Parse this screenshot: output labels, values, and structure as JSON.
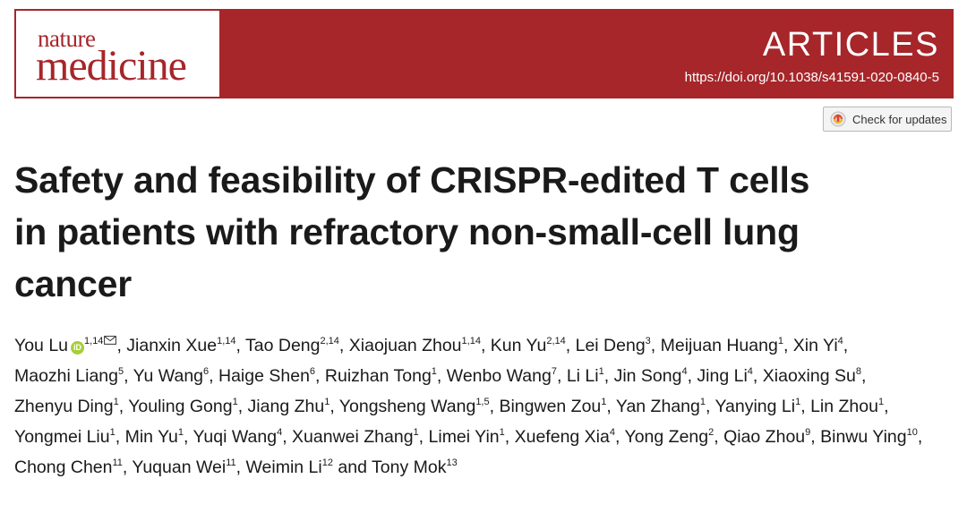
{
  "header": {
    "journal_line1": "nature",
    "journal_line2": "medicine",
    "section": "ARTICLES",
    "doi": "https://doi.org/10.1038/s41591-020-0840-5",
    "brand_color": "#a6262a"
  },
  "check_updates": {
    "label": "Check for updates",
    "icon": "check-for-updates-icon"
  },
  "title_lines": [
    "Safety and feasibility of CRISPR-edited T cells",
    "in patients with refractory non-small-cell lung",
    "cancer"
  ],
  "authors": [
    {
      "name": "You Lu",
      "sup": "1,14",
      "orcid": true,
      "corresponding": true
    },
    {
      "name": "Jianxin Xue",
      "sup": "1,14"
    },
    {
      "name": "Tao Deng",
      "sup": "2,14"
    },
    {
      "name": "Xiaojuan Zhou",
      "sup": "1,14"
    },
    {
      "name": "Kun Yu",
      "sup": "2,14"
    },
    {
      "name": "Lei Deng",
      "sup": "3"
    },
    {
      "name": "Meijuan Huang",
      "sup": "1"
    },
    {
      "name": "Xin Yi",
      "sup": "4"
    },
    {
      "name": "Maozhi Liang",
      "sup": "5"
    },
    {
      "name": "Yu Wang",
      "sup": "6"
    },
    {
      "name": "Haige Shen",
      "sup": "6"
    },
    {
      "name": "Ruizhan Tong",
      "sup": "1"
    },
    {
      "name": "Wenbo Wang",
      "sup": "7"
    },
    {
      "name": "Li Li",
      "sup": "1"
    },
    {
      "name": "Jin Song",
      "sup": "4"
    },
    {
      "name": "Jing Li",
      "sup": "4"
    },
    {
      "name": "Xiaoxing Su",
      "sup": "8"
    },
    {
      "name": "Zhenyu Ding",
      "sup": "1"
    },
    {
      "name": "Youling Gong",
      "sup": "1"
    },
    {
      "name": "Jiang Zhu",
      "sup": "1"
    },
    {
      "name": "Yongsheng Wang",
      "sup": "1,5"
    },
    {
      "name": "Bingwen Zou",
      "sup": "1"
    },
    {
      "name": "Yan Zhang",
      "sup": "1"
    },
    {
      "name": "Yanying Li",
      "sup": "1"
    },
    {
      "name": "Lin Zhou",
      "sup": "1"
    },
    {
      "name": "Yongmei Liu",
      "sup": "1"
    },
    {
      "name": "Min Yu",
      "sup": "1"
    },
    {
      "name": "Yuqi Wang",
      "sup": "4"
    },
    {
      "name": "Xuanwei Zhang",
      "sup": "1"
    },
    {
      "name": "Limei Yin",
      "sup": "1"
    },
    {
      "name": "Xuefeng Xia",
      "sup": "4"
    },
    {
      "name": "Yong Zeng",
      "sup": "2"
    },
    {
      "name": "Qiao Zhou",
      "sup": "9"
    },
    {
      "name": "Binwu Ying",
      "sup": "10"
    },
    {
      "name": "Chong Chen",
      "sup": "11"
    },
    {
      "name": "Yuquan Wei",
      "sup": "11"
    },
    {
      "name": "Weimin Li",
      "sup": "12"
    },
    {
      "name": "Tony Mok",
      "sup": "13"
    }
  ],
  "authors_conjunction": "and"
}
